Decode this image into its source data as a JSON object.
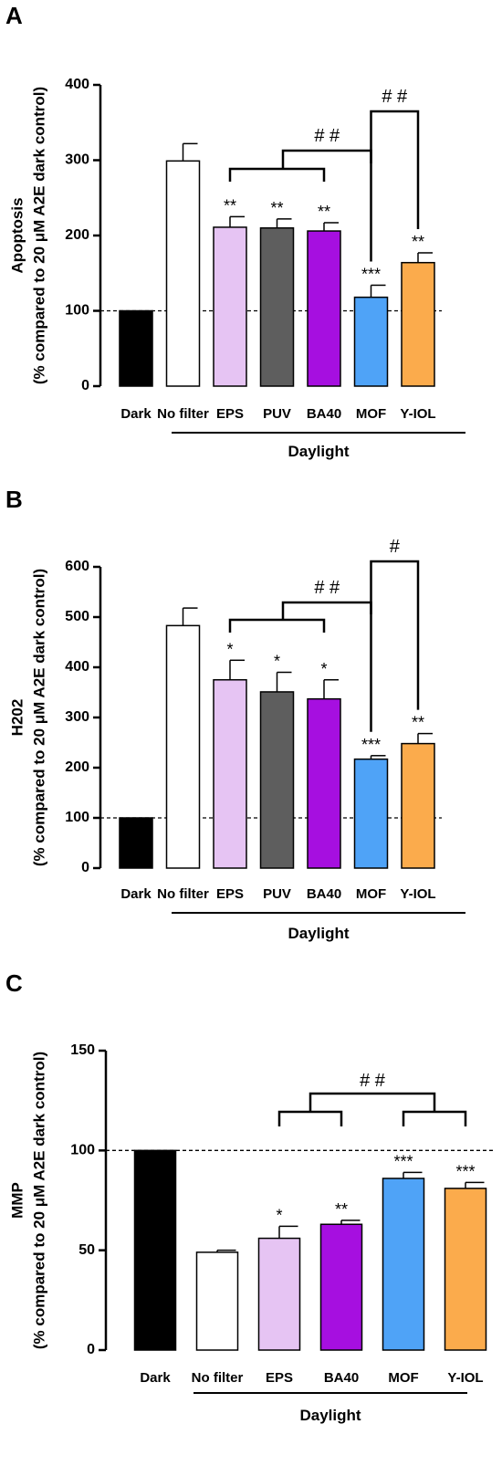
{
  "chart_data": [
    {
      "type": "bar",
      "panel_label": "A",
      "ylabel_line1": "Apoptosis",
      "ylabel_line2": "(% compared to 20 μM A2E dark control)",
      "categories": [
        "Dark",
        "No filter",
        "EPS",
        "PUV",
        "BA40",
        "MOF",
        "Y-IOL"
      ],
      "values": [
        100,
        299,
        211,
        210,
        206,
        118,
        164
      ],
      "errors": [
        0,
        23,
        14,
        12,
        11,
        16,
        13
      ],
      "colors": [
        "#000000",
        "#ffffff",
        "#e6c4f3",
        "#5e5e5e",
        "#a60fe0",
        "#4fa3f7",
        "#fbab4c"
      ],
      "significance": [
        "",
        "",
        "**",
        "**",
        "**",
        "***",
        "**"
      ],
      "ylim": [
        0,
        400
      ],
      "yticks": [
        0,
        100,
        200,
        300,
        400
      ],
      "reference_line": 100,
      "group_label": "Daylight",
      "group_start": 1,
      "comparisons": [
        {
          "label": "# #",
          "left_group": [
            2,
            4
          ],
          "right_index": 5
        },
        {
          "label": "# #",
          "left_index": 5,
          "right_index": 6
        }
      ]
    },
    {
      "type": "bar",
      "panel_label": "B",
      "ylabel_line1": "H202",
      "ylabel_line2": "(% compared to 20 μM A2E dark control)",
      "categories": [
        "Dark",
        "No filter",
        "EPS",
        "PUV",
        "BA40",
        "MOF",
        "Y-IOL"
      ],
      "values": [
        100,
        483,
        375,
        351,
        337,
        217,
        248
      ],
      "errors": [
        0,
        35,
        39,
        39,
        38,
        7,
        20
      ],
      "colors": [
        "#000000",
        "#ffffff",
        "#e6c4f3",
        "#5e5e5e",
        "#a60fe0",
        "#4fa3f7",
        "#fbab4c"
      ],
      "significance": [
        "",
        "",
        "*",
        "*",
        "*",
        "***",
        "**"
      ],
      "ylim": [
        0,
        600
      ],
      "yticks": [
        0,
        100,
        200,
        300,
        400,
        500,
        600
      ],
      "reference_line": 100,
      "group_label": "Daylight",
      "group_start": 1,
      "comparisons": [
        {
          "label": "# #",
          "left_group": [
            2,
            4
          ],
          "right_index": 5
        },
        {
          "label": "#",
          "left_index": 5,
          "right_index": 6
        }
      ]
    },
    {
      "type": "bar",
      "panel_label": "C",
      "ylabel_line1": "MMP",
      "ylabel_line2": "(% compared to 20 μM A2E dark control)",
      "categories": [
        "Dark",
        "No filter",
        "EPS",
        "BA40",
        "MOF",
        "Y-IOL"
      ],
      "values": [
        100,
        49,
        56,
        63,
        86,
        81
      ],
      "errors": [
        0,
        1,
        6,
        2,
        3,
        3
      ],
      "colors": [
        "#000000",
        "#ffffff",
        "#e6c4f3",
        "#a60fe0",
        "#4fa3f7",
        "#fbab4c"
      ],
      "significance": [
        "",
        "",
        "*",
        "**",
        "***",
        "***"
      ],
      "ylim": [
        0,
        150
      ],
      "yticks": [
        0,
        50,
        100,
        150
      ],
      "reference_line": 100,
      "group_label": "Daylight",
      "group_start": 1,
      "comparisons": [
        {
          "label": "# #",
          "left_group": [
            2,
            3
          ],
          "right_group": [
            4,
            5
          ]
        }
      ]
    }
  ]
}
